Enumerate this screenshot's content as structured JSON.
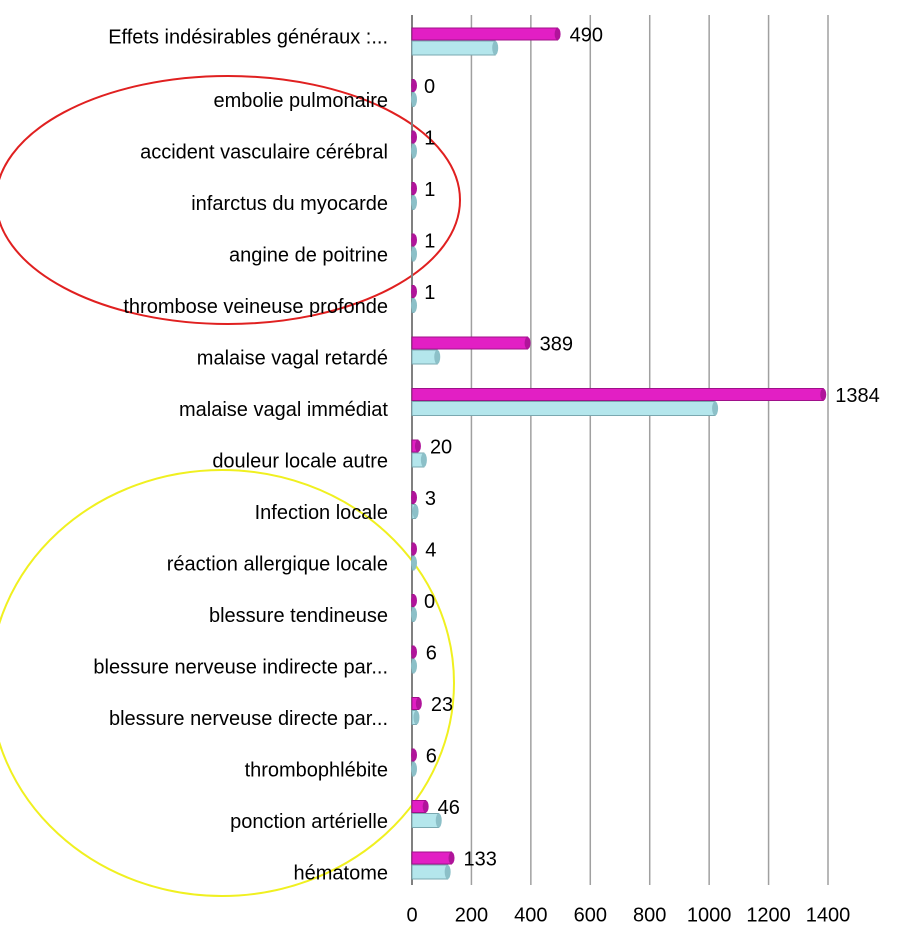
{
  "chart_data": {
    "type": "barh",
    "categories": [
      "Effets indésirables généraux :...",
      "embolie pulmonaire",
      "accident vasculaire cérébral",
      "infarctus du myocarde",
      "angine de poitrine",
      "thrombose veineuse profonde",
      "malaise vagal retardé",
      "malaise vagal immédiat",
      "douleur locale autre",
      "Infection locale",
      "réaction allergique locale",
      "blessure tendineuse",
      "blessure nerveuse indirecte par...",
      "blessure nerveuse directe par...",
      "thrombophlébite",
      "ponction artérielle",
      "hématome"
    ],
    "series": [
      {
        "color": "#e21fc4",
        "values": [
          490,
          0,
          1,
          1,
          1,
          1,
          389,
          1384,
          20,
          3,
          4,
          0,
          6,
          23,
          6,
          46,
          133
        ]
      },
      {
        "color": "#b4e6ec",
        "values": [
          280,
          5,
          5,
          5,
          5,
          5,
          85,
          1020,
          40,
          12,
          5,
          3,
          5,
          15,
          5,
          90,
          120
        ]
      }
    ],
    "xlim": [
      0,
      1400
    ],
    "xticks": [
      0,
      200,
      400,
      600,
      800,
      1000,
      1200,
      1400
    ],
    "grid": true
  }
}
